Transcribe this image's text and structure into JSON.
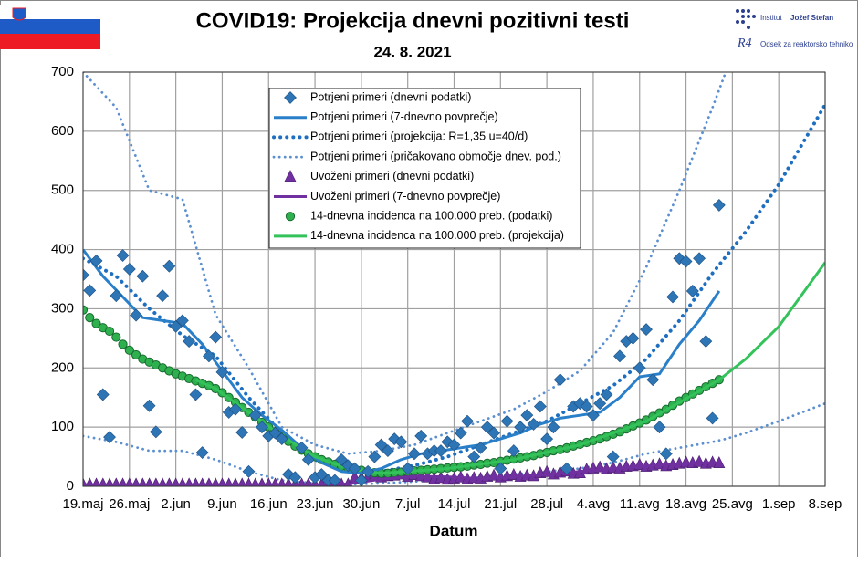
{
  "header": {
    "institute_prefix": "Institut",
    "institute_name": "Jožef Stefan",
    "department_logo": "R4",
    "department": "Odsek za reaktorsko tehniko"
  },
  "chart_data": {
    "type": "line",
    "title": "COVID19: Projekcija dnevni pozitivni testi",
    "subtitle": "24. 8. 2021",
    "x_label": "Datum",
    "xlim": [
      0,
      112
    ],
    "xticks": [
      {
        "value": 0,
        "label": "19.maj"
      },
      {
        "value": 7,
        "label": "26.maj"
      },
      {
        "value": 14,
        "label": "2.jun"
      },
      {
        "value": 21,
        "label": "9.jun"
      },
      {
        "value": 28,
        "label": "16.jun"
      },
      {
        "value": 35,
        "label": "23.jun"
      },
      {
        "value": 42,
        "label": "30.jun"
      },
      {
        "value": 49,
        "label": "7.jul"
      },
      {
        "value": 56,
        "label": "14.jul"
      },
      {
        "value": 63,
        "label": "21.jul"
      },
      {
        "value": 70,
        "label": "28.jul"
      },
      {
        "value": 77,
        "label": "4.avg"
      },
      {
        "value": 84,
        "label": "11.avg"
      },
      {
        "value": 91,
        "label": "18.avg"
      },
      {
        "value": 98,
        "label": "25.avg"
      },
      {
        "value": 105,
        "label": "1.sep"
      },
      {
        "value": 112,
        "label": "8.sep"
      }
    ],
    "ylim": [
      0,
      700
    ],
    "yticks": [
      0,
      100,
      200,
      300,
      400,
      500,
      600,
      700
    ],
    "grid": true,
    "series": [
      {
        "name": "Potrjeni primeri (dnevni podatki)",
        "mark": "diamond",
        "color": "#2e75b6",
        "x": [
          0,
          1,
          2,
          3,
          4,
          5,
          6,
          7,
          8,
          9,
          10,
          11,
          12,
          13,
          14,
          15,
          16,
          17,
          18,
          19,
          20,
          21,
          22,
          23,
          24,
          25,
          26,
          27,
          28,
          29,
          30,
          31,
          32,
          33,
          34,
          35,
          36,
          37,
          38,
          39,
          40,
          41,
          42,
          43,
          44,
          45,
          46,
          47,
          48,
          49,
          50,
          51,
          52,
          53,
          54,
          55,
          56,
          57,
          58,
          59,
          60,
          61,
          62,
          63,
          64,
          65,
          66,
          67,
          68,
          69,
          70,
          71,
          72,
          73,
          74,
          75,
          76,
          77,
          78,
          79,
          80,
          81,
          82,
          83,
          84,
          85,
          86,
          87,
          88,
          89,
          90,
          91,
          92,
          93,
          94,
          95,
          96
        ],
        "values": [
          357,
          331,
          381,
          155,
          83,
          322,
          390,
          367,
          289,
          355,
          136,
          92,
          322,
          372,
          270,
          280,
          245,
          155,
          57,
          220,
          252,
          193,
          125,
          130,
          91,
          25,
          120,
          100,
          85,
          90,
          80,
          20,
          15,
          65,
          45,
          15,
          20,
          10,
          10,
          45,
          35,
          30,
          10,
          25,
          50,
          70,
          60,
          80,
          75,
          30,
          55,
          85,
          55,
          60,
          60,
          75,
          70,
          90,
          110,
          50,
          65,
          100,
          90,
          30,
          110,
          60,
          100,
          120,
          105,
          135,
          80,
          100,
          180,
          30,
          135,
          140,
          135,
          120,
          140,
          155,
          50,
          220,
          245,
          250,
          200,
          265,
          180,
          100,
          55,
          320,
          385,
          380,
          330,
          385,
          245,
          115,
          475
        ]
      },
      {
        "name": "Potrjeni primeri (7-dnevno povprečje)",
        "mark": "line",
        "color": "#2a7fc9",
        "x": [
          0,
          3,
          6,
          9,
          12,
          15,
          18,
          21,
          24,
          27,
          30,
          33,
          36,
          39,
          42,
          45,
          48,
          51,
          54,
          57,
          60,
          63,
          66,
          69,
          72,
          75,
          78,
          81,
          84,
          87,
          90,
          93,
          96
        ],
        "values": [
          400,
          355,
          320,
          285,
          280,
          275,
          240,
          195,
          150,
          120,
          95,
          65,
          40,
          25,
          22,
          30,
          45,
          55,
          60,
          65,
          70,
          80,
          90,
          105,
          115,
          120,
          125,
          150,
          185,
          190,
          240,
          280,
          330
        ]
      },
      {
        "name": "Potrjeni primeri (projekcija: R=1,35 u=40/d)",
        "mark": "dotted",
        "color": "#1f6fc0",
        "x": [
          0,
          5,
          10,
          15,
          20,
          25,
          30,
          35,
          40,
          45,
          50,
          55,
          60,
          65,
          70,
          75,
          80,
          85,
          90,
          95,
          100,
          105,
          112
        ],
        "values": [
          385,
          355,
          300,
          255,
          220,
          150,
          90,
          45,
          25,
          25,
          35,
          50,
          70,
          90,
          110,
          140,
          170,
          215,
          280,
          360,
          430,
          510,
          645
        ]
      },
      {
        "name": "Potrjeni primeri (pričakovano območje dnev. pod.)",
        "mark": "range",
        "color": "#5b8fd0",
        "x": [
          0,
          5,
          10,
          15,
          20,
          25,
          30,
          35,
          40,
          45,
          50,
          55,
          60,
          65,
          70,
          75,
          80,
          85,
          90,
          95,
          97,
          100,
          105,
          112
        ],
        "upper": [
          700,
          640,
          500,
          485,
          290,
          200,
          100,
          70,
          55,
          60,
          70,
          90,
          110,
          130,
          160,
          195,
          260,
          370,
          500,
          640,
          700,
          null,
          null,
          null
        ],
        "lower": [
          85,
          75,
          60,
          60,
          45,
          25,
          10,
          5,
          3,
          5,
          8,
          12,
          15,
          20,
          25,
          30,
          40,
          55,
          65,
          75,
          80,
          90,
          110,
          140
        ]
      },
      {
        "name": "Uvoženi primeri (dnevni podatki)",
        "mark": "triangle",
        "color": "#7030a0",
        "x": [
          0,
          1,
          2,
          3,
          4,
          5,
          6,
          7,
          8,
          9,
          10,
          11,
          12,
          13,
          14,
          15,
          16,
          17,
          18,
          19,
          20,
          21,
          22,
          23,
          24,
          25,
          26,
          27,
          28,
          29,
          30,
          31,
          32,
          33,
          34,
          35,
          36,
          37,
          38,
          39,
          40,
          41,
          42,
          43,
          44,
          45,
          46,
          47,
          48,
          49,
          50,
          51,
          52,
          53,
          54,
          55,
          56,
          57,
          58,
          59,
          60,
          61,
          62,
          63,
          64,
          65,
          66,
          67,
          68,
          69,
          70,
          71,
          72,
          73,
          74,
          75,
          76,
          77,
          78,
          79,
          80,
          81,
          82,
          83,
          84,
          85,
          86,
          87,
          88,
          89,
          90,
          91,
          92,
          93,
          94,
          95,
          96
        ],
        "values": [
          3,
          3,
          3,
          3,
          3,
          3,
          3,
          3,
          3,
          3,
          3,
          3,
          3,
          3,
          3,
          3,
          3,
          3,
          3,
          3,
          3,
          3,
          3,
          3,
          3,
          3,
          3,
          3,
          3,
          3,
          3,
          3,
          3,
          3,
          3,
          3,
          3,
          3,
          3,
          3,
          3,
          15,
          14,
          16,
          18,
          15,
          17,
          18,
          20,
          16,
          19,
          17,
          15,
          12,
          14,
          11,
          13,
          15,
          12,
          14,
          13,
          16,
          18,
          15,
          17,
          19,
          16,
          18,
          17,
          22,
          24,
          20,
          23,
          25,
          21,
          22,
          28,
          30,
          32,
          29,
          31,
          30,
          33,
          34,
          36,
          33,
          35,
          37,
          34,
          36,
          38,
          40,
          39,
          41,
          38,
          40,
          39
        ]
      },
      {
        "name": "Uvoženi primeri (7-dnevno povprečje)",
        "mark": "line",
        "color": "#7030a0",
        "x": [
          0,
          5,
          10,
          15,
          20,
          25,
          30,
          35,
          40,
          45,
          50,
          55,
          60,
          65,
          70,
          75,
          80,
          85,
          90,
          95,
          96
        ],
        "values": [
          3,
          3,
          3,
          3,
          3,
          3,
          3,
          3,
          4,
          12,
          17,
          16,
          13,
          16,
          20,
          25,
          30,
          34,
          38,
          40,
          40
        ]
      },
      {
        "name": "14-dnevna incidenca na 100.000 preb. (podatki)",
        "mark": "circle",
        "color": "#2eb04f",
        "x": [
          0,
          1,
          2,
          3,
          4,
          5,
          6,
          7,
          8,
          9,
          10,
          11,
          12,
          13,
          14,
          15,
          16,
          17,
          18,
          19,
          20,
          21,
          22,
          23,
          24,
          25,
          26,
          27,
          28,
          29,
          30,
          31,
          32,
          33,
          34,
          35,
          36,
          37,
          38,
          39,
          40,
          41,
          42,
          43,
          44,
          45,
          46,
          47,
          48,
          49,
          50,
          51,
          52,
          53,
          54,
          55,
          56,
          57,
          58,
          59,
          60,
          61,
          62,
          63,
          64,
          65,
          66,
          67,
          68,
          69,
          70,
          71,
          72,
          73,
          74,
          75,
          76,
          77,
          78,
          79,
          80,
          81,
          82,
          83,
          84,
          85,
          86,
          87,
          88,
          89,
          90,
          91,
          92,
          93,
          94,
          95,
          96
        ],
        "values": [
          298,
          285,
          275,
          268,
          262,
          252,
          240,
          230,
          222,
          215,
          210,
          205,
          200,
          195,
          190,
          186,
          182,
          178,
          174,
          170,
          165,
          158,
          150,
          142,
          133,
          125,
          117,
          108,
          100,
          92,
          84,
          76,
          68,
          61,
          55,
          50,
          45,
          41,
          37,
          34,
          31,
          29,
          27,
          25,
          23,
          22,
          22,
          23,
          24,
          25,
          26,
          27,
          28,
          29,
          30,
          31,
          32,
          33,
          34,
          36,
          37,
          39,
          40,
          42,
          44,
          46,
          48,
          50,
          52,
          55,
          57,
          60,
          62,
          65,
          68,
          71,
          74,
          77,
          80,
          84,
          88,
          92,
          97,
          102,
          107,
          112,
          118,
          124,
          130,
          137,
          144,
          150,
          156,
          162,
          168,
          174,
          180
        ]
      },
      {
        "name": "14-dnevna incidenca na 100.000 preb. (projekcija)",
        "mark": "line",
        "color": "#33c35a",
        "x": [
          17,
          20,
          25,
          30,
          35,
          40,
          45,
          55,
          65,
          75,
          85,
          96,
          100,
          105,
          112
        ],
        "values": [
          180,
          165,
          125,
          85,
          50,
          30,
          22,
          30,
          45,
          70,
          110,
          180,
          215,
          270,
          378
        ]
      }
    ]
  }
}
